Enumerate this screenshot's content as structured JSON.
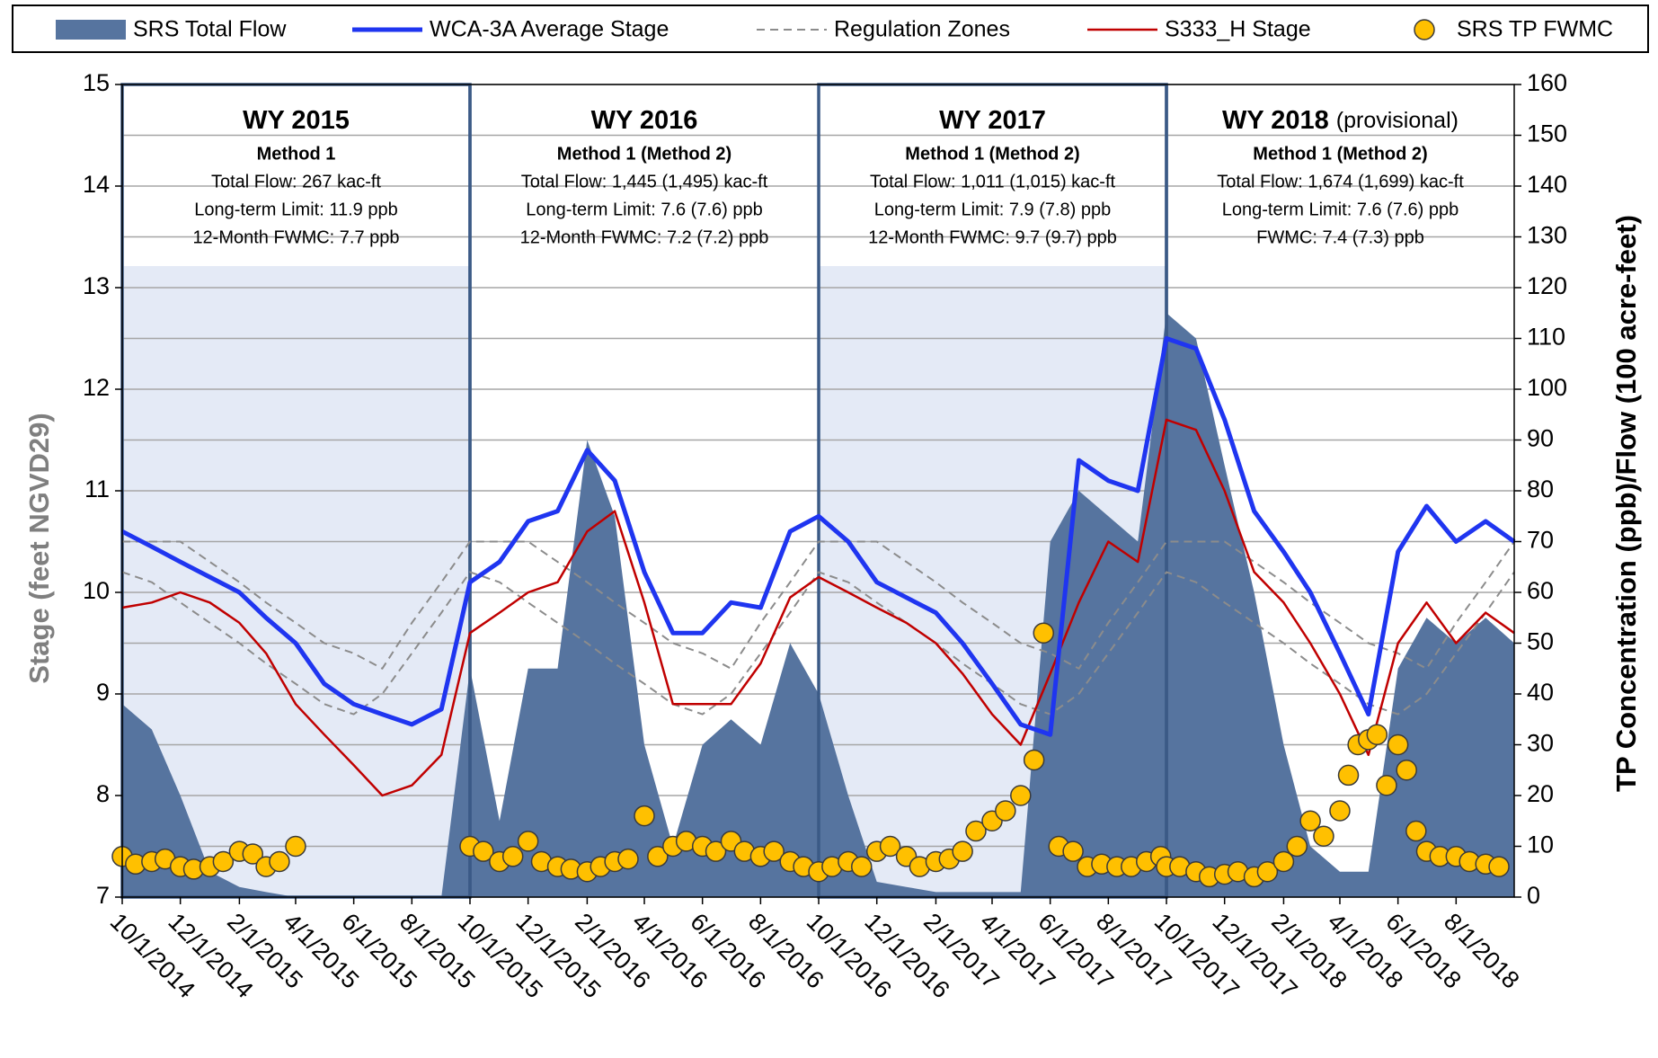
{
  "chart_data": {
    "type": "line",
    "y_label": "Stage (feet NGVD29)",
    "y2_label": "TP Concentration (ppb)/Flow (100 acre-feet)",
    "xlim": [
      "10/1/2014",
      "10/1/2018"
    ],
    "xticks": [
      "10/1/2014",
      "12/1/2014",
      "2/1/2015",
      "4/1/2015",
      "6/1/2015",
      "8/1/2015",
      "10/1/2015",
      "12/1/2015",
      "2/1/2016",
      "4/1/2016",
      "6/1/2016",
      "8/1/2016",
      "10/1/2016",
      "12/1/2016",
      "2/1/2017",
      "4/1/2017",
      "6/1/2017",
      "8/1/2017",
      "10/1/2017",
      "12/1/2017",
      "2/1/2018",
      "4/1/2018",
      "6/1/2018",
      "8/1/2018"
    ],
    "ylim": [
      7,
      15
    ],
    "yticks": [
      7,
      8,
      9,
      10,
      11,
      12,
      13,
      14,
      15
    ],
    "y2lim": [
      0,
      160
    ],
    "y2ticks": [
      0,
      10,
      20,
      30,
      40,
      50,
      60,
      70,
      80,
      90,
      100,
      110,
      120,
      130,
      140,
      150,
      160
    ],
    "grid": true,
    "x": [
      "10/1/2014",
      "11/1/2014",
      "12/1/2014",
      "1/1/2015",
      "2/1/2015",
      "3/1/2015",
      "4/1/2015",
      "5/1/2015",
      "6/1/2015",
      "7/1/2015",
      "8/1/2015",
      "9/1/2015",
      "10/1/2015",
      "11/1/2015",
      "12/1/2015",
      "1/1/2016",
      "2/1/2016",
      "3/1/2016",
      "4/1/2016",
      "5/1/2016",
      "6/1/2016",
      "7/1/2016",
      "8/1/2016",
      "9/1/2016",
      "10/1/2016",
      "11/1/2016",
      "12/1/2016",
      "1/1/2017",
      "2/1/2017",
      "3/1/2017",
      "4/1/2017",
      "5/1/2017",
      "6/1/2017",
      "7/1/2017",
      "8/1/2017",
      "9/1/2017",
      "10/1/2017",
      "11/1/2017",
      "12/1/2017",
      "1/1/2018",
      "2/1/2018",
      "3/1/2018",
      "4/1/2018",
      "5/1/2018",
      "6/1/2018",
      "7/1/2018",
      "8/1/2018",
      "9/1/2018",
      "10/1/2018"
    ],
    "series": [
      {
        "name": "SRS Total Flow",
        "type": "area",
        "axis": "y2",
        "color": "#56749f",
        "values": [
          38,
          33,
          20,
          5,
          2,
          1,
          0,
          0,
          0,
          0,
          0,
          0,
          45,
          15,
          45,
          45,
          90,
          75,
          30,
          10,
          30,
          35,
          30,
          50,
          40,
          20,
          3,
          2,
          1,
          1,
          1,
          1,
          70,
          80,
          75,
          70,
          115,
          110,
          85,
          60,
          30,
          10,
          5,
          5,
          45,
          55,
          50,
          55,
          50
        ]
      },
      {
        "name": "WCA-3A Average Stage",
        "type": "line",
        "color": "#1f35f0",
        "width": 5,
        "values": [
          10.6,
          10.45,
          10.3,
          10.15,
          10.0,
          9.75,
          9.5,
          9.1,
          8.9,
          8.8,
          8.7,
          8.85,
          10.1,
          10.3,
          10.7,
          10.8,
          11.4,
          11.1,
          10.2,
          9.6,
          9.6,
          9.9,
          9.85,
          10.6,
          10.75,
          10.5,
          10.1,
          9.95,
          9.8,
          9.5,
          9.1,
          8.7,
          8.6,
          11.3,
          11.1,
          11.0,
          12.5,
          12.4,
          11.7,
          10.8,
          10.4,
          10.0,
          9.4,
          8.8,
          10.4,
          10.85,
          10.5,
          10.7,
          10.5
        ]
      },
      {
        "name": "Regulation Zones",
        "type": "line",
        "dash": true,
        "color": "#8c8c8c",
        "width": 2,
        "values": [
          10.5,
          10.5,
          10.5,
          10.3,
          10.1,
          9.9,
          9.7,
          9.5,
          9.4,
          9.25,
          9.7,
          10.1,
          10.5,
          10.5,
          10.5,
          10.3,
          10.1,
          9.9,
          9.7,
          9.5,
          9.4,
          9.25,
          9.7,
          10.1,
          10.5,
          10.5,
          10.5,
          10.3,
          10.1,
          9.9,
          9.7,
          9.5,
          9.4,
          9.25,
          9.7,
          10.1,
          10.5,
          10.5,
          10.5,
          10.3,
          10.1,
          9.9,
          9.7,
          9.5,
          9.4,
          9.25,
          9.7,
          10.1,
          10.5
        ],
        "lower": [
          10.2,
          10.1,
          9.9,
          9.7,
          9.5,
          9.3,
          9.1,
          8.9,
          8.8,
          9.0,
          9.4,
          9.8,
          10.2,
          10.1,
          9.9,
          9.7,
          9.5,
          9.3,
          9.1,
          8.9,
          8.8,
          9.0,
          9.4,
          9.8,
          10.2,
          10.1,
          9.9,
          9.7,
          9.5,
          9.3,
          9.1,
          8.9,
          8.8,
          9.0,
          9.4,
          9.8,
          10.2,
          10.1,
          9.9,
          9.7,
          9.5,
          9.3,
          9.1,
          8.9,
          8.8,
          9.0,
          9.4,
          9.8,
          10.2
        ]
      },
      {
        "name": "S333_H Stage",
        "type": "line",
        "color": "#c00000",
        "width": 2.5,
        "values": [
          9.85,
          9.9,
          10.0,
          9.9,
          9.7,
          9.4,
          8.9,
          8.6,
          8.3,
          8.0,
          8.1,
          8.4,
          9.6,
          9.8,
          10.0,
          10.1,
          10.6,
          10.8,
          9.9,
          8.9,
          8.9,
          8.9,
          9.3,
          9.95,
          10.15,
          10.0,
          9.85,
          9.7,
          9.5,
          9.2,
          8.8,
          8.5,
          9.2,
          9.9,
          10.5,
          10.3,
          11.7,
          11.6,
          11.0,
          10.2,
          9.9,
          9.5,
          9.0,
          8.4,
          9.5,
          9.9,
          9.5,
          9.8,
          9.6
        ]
      },
      {
        "name": "SRS TP FWMC",
        "type": "scatter",
        "axis": "y2",
        "color": "#ffc000",
        "x": [
          "10/1/2014",
          "10/15/2014",
          "11/1/2014",
          "11/15/2014",
          "12/1/2014",
          "12/15/2014",
          "1/1/2015",
          "1/15/2015",
          "2/1/2015",
          "2/15/2015",
          "3/1/2015",
          "3/15/2015",
          "4/1/2015",
          "10/1/2015",
          "10/15/2015",
          "11/1/2015",
          "11/15/2015",
          "12/1/2015",
          "12/15/2015",
          "1/1/2016",
          "1/15/2016",
          "2/1/2016",
          "2/15/2016",
          "3/1/2016",
          "3/15/2016",
          "4/1/2016",
          "4/15/2016",
          "5/1/2016",
          "5/15/2016",
          "6/1/2016",
          "6/15/2016",
          "7/1/2016",
          "7/15/2016",
          "8/1/2016",
          "8/15/2016",
          "9/1/2016",
          "9/15/2016",
          "10/1/2016",
          "10/15/2016",
          "11/1/2016",
          "11/15/2016",
          "12/1/2016",
          "12/15/2016",
          "1/1/2017",
          "1/15/2017",
          "2/1/2017",
          "2/15/2017",
          "3/1/2017",
          "3/15/2017",
          "4/1/2017",
          "4/15/2017",
          "5/1/2017",
          "5/15/2017",
          "5/25/2017",
          "6/10/2017",
          "6/25/2017",
          "7/10/2017",
          "7/25/2017",
          "8/10/2017",
          "8/25/2017",
          "9/10/2017",
          "9/25/2017",
          "10/1/2017",
          "10/15/2017",
          "11/1/2017",
          "11/15/2017",
          "12/1/2017",
          "12/15/2017",
          "1/1/2018",
          "1/15/2018",
          "2/1/2018",
          "2/15/2018",
          "3/1/2018",
          "3/15/2018",
          "4/1/2018",
          "4/10/2018",
          "4/20/2018",
          "5/1/2018",
          "5/10/2018",
          "5/20/2018",
          "6/1/2018",
          "6/10/2018",
          "6/20/2018",
          "7/1/2018",
          "7/15/2018",
          "8/1/2018",
          "8/15/2018",
          "9/1/2018",
          "9/15/2018"
        ],
        "values": [
          8,
          6.5,
          7,
          7.5,
          6,
          5.5,
          6,
          7,
          9,
          8.5,
          6,
          7,
          10,
          10,
          9,
          7,
          8,
          11,
          7,
          6,
          5.5,
          5,
          6,
          7,
          7.5,
          16,
          8,
          10,
          11,
          10,
          9,
          11,
          9,
          8,
          9,
          7,
          6,
          5,
          6,
          7,
          6,
          9,
          10,
          8,
          6,
          7,
          7.5,
          9,
          13,
          15,
          17,
          20,
          27,
          52,
          10,
          9,
          6,
          6.5,
          6,
          6,
          7,
          8,
          6,
          6,
          5,
          4,
          4.5,
          5,
          4,
          5,
          7,
          10,
          15,
          12,
          17,
          24,
          30,
          31,
          32,
          22,
          30,
          25,
          13,
          9,
          8,
          8,
          7,
          6.5,
          6
        ]
      }
    ],
    "panels": [
      {
        "title": "WY 2015",
        "method": "Method 1",
        "shaded": true,
        "lines": [
          "Total Flow: 267 kac-ft",
          "Long-term Limit: 11.9 ppb",
          "12-Month FWMC: 7.7 ppb"
        ]
      },
      {
        "title": "WY 2016",
        "method": "Method 1 (Method 2)",
        "shaded": false,
        "lines": [
          "Total Flow: 1,445 (1,495) kac-ft",
          "Long-term Limit: 7.6 (7.6) ppb",
          "12-Month FWMC: 7.2 (7.2) ppb"
        ]
      },
      {
        "title": "WY 2017",
        "method": "Method 1 (Method 2)",
        "shaded": true,
        "lines": [
          "Total Flow: 1,011 (1,015) kac-ft",
          "Long-term Limit: 7.9 (7.8) ppb",
          "12-Month FWMC: 9.7 (9.7) ppb"
        ]
      },
      {
        "title": "WY 2018",
        "note": "(provisional)",
        "method": "Method 1 (Method 2)",
        "shaded": false,
        "lines": [
          "Total Flow:  1,674 (1,699) kac-ft",
          "Long-term Limit: 7.6 (7.6) ppb",
          "FWMC:  7.4 (7.3) ppb"
        ]
      }
    ]
  }
}
